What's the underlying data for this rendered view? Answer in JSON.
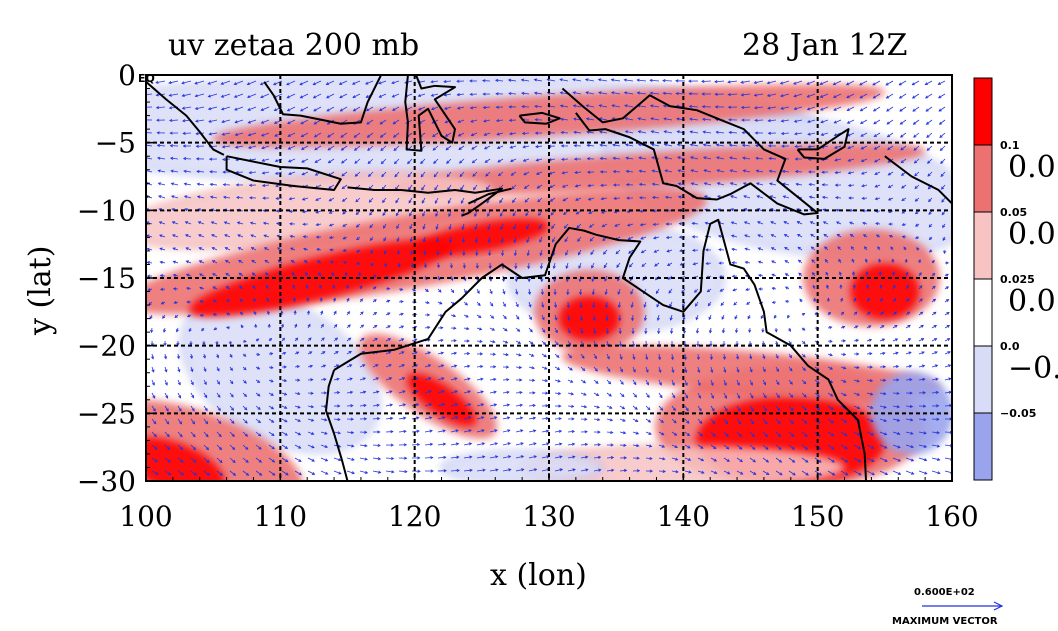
{
  "chart_data": {
    "type": "heatmap",
    "title": "uv zetaa 200 mb",
    "subtitle": "28 Jan 12Z",
    "xlabel": "x (lon)",
    "ylabel": "y (lat)",
    "xlim": [
      100,
      160
    ],
    "ylim": [
      -30,
      0
    ],
    "grid": true,
    "x_ticks": [
      "100",
      "110",
      "120",
      "130",
      "140",
      "150",
      "160"
    ],
    "y_ticks": [
      "0",
      "−5",
      "−10",
      "−15",
      "−20",
      "−25",
      "−30"
    ],
    "x_tick_values": [
      100,
      110,
      120,
      130,
      140,
      150,
      160
    ],
    "y_tick_values": [
      0,
      -5,
      -10,
      -15,
      -20,
      -25,
      -30
    ],
    "corner_label": "EQ",
    "colorbar": {
      "levels": [
        "0.1",
        "0.05",
        "0.025",
        "0.0",
        "−0.05"
      ],
      "overflow_labels": [
        "0.0",
        "0.0",
        "0.0",
        "−0."
      ],
      "colors": [
        "#ff0000",
        "#ec7272",
        "#f7c3c3",
        "#ffffff",
        "#d8dcf7",
        "#9aa4ec"
      ]
    },
    "fill_colors": {
      "strong_pos": "#ff0000",
      "pos": "#ec7272",
      "weak_pos": "#f7c3c3",
      "neutral": "#ffffff",
      "weak_neg": "#d8dcf7",
      "neg": "#9aa4ec"
    },
    "vector_color": "#2233dd",
    "coast_color": "#000000",
    "max_vector": {
      "value": "0.600E+02",
      "label": "MAXIMUM VECTOR"
    }
  }
}
